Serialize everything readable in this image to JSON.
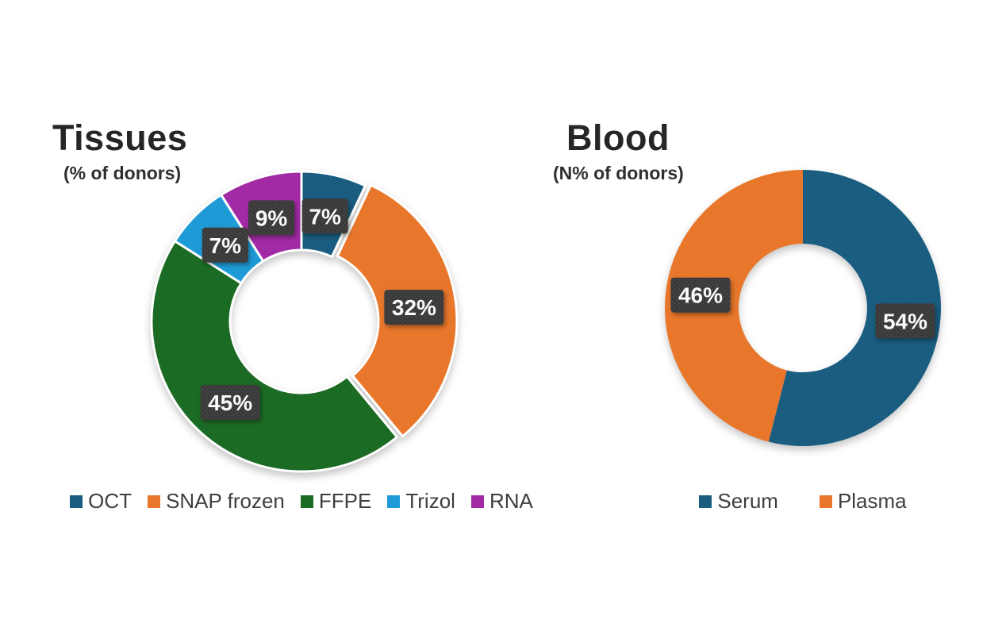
{
  "page": {
    "background": "#ffffff"
  },
  "chart_data": [
    {
      "type": "pie",
      "donut": true,
      "title": "Tissues",
      "subtitle": "(% of donors)",
      "categories": [
        "OCT",
        "SNAP frozen",
        "FFPE",
        "Trizol",
        "RNA"
      ],
      "values": [
        7,
        32,
        45,
        7,
        9
      ],
      "data_labels": [
        "7%",
        "32%",
        "45%",
        "7%",
        "9%"
      ],
      "colors": [
        "#1A5D80",
        "#E8772B",
        "#1C6B24",
        "#1E9BD7",
        "#A22BA5"
      ],
      "legend_position": "bottom",
      "start_angle_deg": 0,
      "clockwise": true,
      "hole_ratio": 0.48,
      "slice_border_color": "#FFFFFF",
      "exploded_segment": "SNAP frozen",
      "label_box_color": "#3A3A3A",
      "label_dot_color": "#4F4F4F",
      "label_text_color": "#FAFAFA"
    },
    {
      "type": "pie",
      "donut": true,
      "title": "Blood",
      "subtitle": "(N% of donors)",
      "categories": [
        "Serum",
        "Plasma"
      ],
      "values": [
        54,
        46
      ],
      "data_labels": [
        "54%",
        "46%"
      ],
      "colors": [
        "#1A5D80",
        "#E8772B"
      ],
      "legend_position": "bottom",
      "start_angle_deg": 0,
      "clockwise": true,
      "hole_ratio": 0.47,
      "slice_border_color": null,
      "exploded_segment": null,
      "label_box_color": "#3A3A3A",
      "label_dot_color": "#4F4F4F",
      "label_text_color": "#FAFAFA"
    }
  ]
}
